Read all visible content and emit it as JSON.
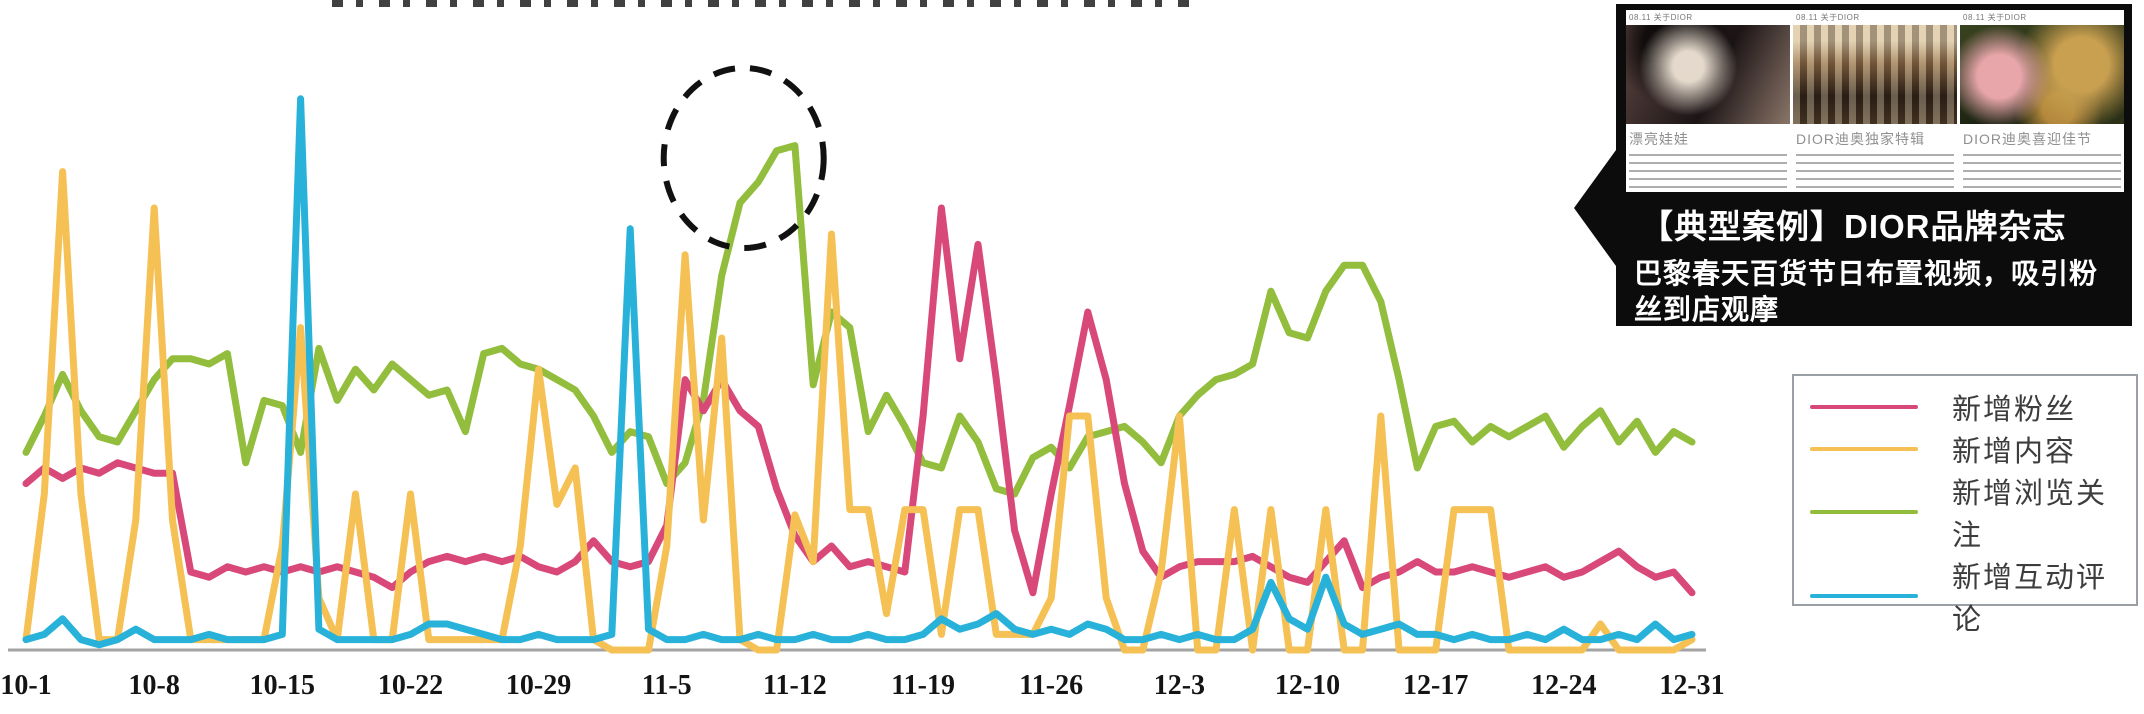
{
  "chart_data": {
    "type": "line",
    "title": "",
    "xlabel": "",
    "ylabel": "",
    "grid": false,
    "legend_position": "right",
    "ylim": [
      0,
      110
    ],
    "x_labels": [
      "10-1",
      "10-8",
      "10-15",
      "10-22",
      "10-29",
      "11-5",
      "11-12",
      "11-19",
      "11-26",
      "12-3",
      "12-10",
      "12-17",
      "12-24",
      "12-31"
    ],
    "x_label_days": [
      0,
      7,
      14,
      21,
      28,
      35,
      42,
      49,
      56,
      63,
      70,
      77,
      84,
      91
    ],
    "date_start": "10-1",
    "date_end": "12-31",
    "annotation": {
      "type": "dashed-circle",
      "day": 39.2,
      "series": "新增浏览关注",
      "meaning": "circled peak of browsing/follow line around 11-8 to 11-12"
    },
    "series": [
      {
        "name": "新增粉丝",
        "key": "new-fans",
        "color": "#d8497a",
        "values": [
          32,
          35,
          33,
          35,
          34,
          36,
          35,
          34,
          34,
          15,
          14,
          16,
          15,
          16,
          15,
          16,
          15,
          16,
          15,
          14,
          12,
          15,
          17,
          18,
          17,
          18,
          17,
          18,
          16,
          15,
          17,
          21,
          17,
          16,
          17,
          24,
          52,
          46,
          52,
          46,
          43,
          31,
          22,
          17,
          20,
          16,
          17,
          16,
          15,
          45,
          85,
          56,
          78,
          52,
          23,
          11,
          30,
          47,
          65,
          52,
          32,
          19,
          14,
          16,
          17,
          17,
          17,
          18,
          16,
          14,
          13,
          17,
          21,
          12,
          14,
          15,
          17,
          15,
          15,
          16,
          15,
          14,
          15,
          16,
          14,
          15,
          17,
          19,
          16,
          14,
          15,
          11
        ]
      },
      {
        "name": "新增内容",
        "key": "new-content",
        "color": "#f5c054",
        "values": [
          2,
          30,
          92,
          30,
          2,
          2,
          25,
          85,
          25,
          2,
          2,
          2,
          2,
          2,
          20,
          62,
          10,
          2,
          30,
          2,
          2,
          30,
          2,
          2,
          2,
          2,
          2,
          20,
          54,
          28,
          35,
          2,
          0,
          0,
          0,
          20,
          76,
          25,
          60,
          2,
          0,
          0,
          26,
          17,
          80,
          27,
          27,
          7,
          27,
          27,
          3,
          27,
          27,
          3,
          3,
          3,
          10,
          45,
          45,
          10,
          0,
          0,
          15,
          45,
          0,
          0,
          27,
          0,
          27,
          0,
          0,
          27,
          0,
          0,
          45,
          0,
          0,
          0,
          27,
          27,
          27,
          0,
          0,
          0,
          0,
          0,
          5,
          0,
          0,
          0,
          0,
          2
        ]
      },
      {
        "name": "新增浏览关注",
        "key": "new-views-follows",
        "color": "#92bd3d",
        "values": [
          38,
          45,
          53,
          46,
          41,
          40,
          46,
          52,
          56,
          56,
          55,
          57,
          36,
          48,
          47,
          38,
          58,
          48,
          54,
          50,
          55,
          52,
          49,
          50,
          42,
          57,
          58,
          55,
          54,
          52,
          50,
          45,
          38,
          42,
          41,
          32,
          36,
          48,
          72,
          86,
          90,
          96,
          97,
          51,
          65,
          62,
          42,
          49,
          43,
          36,
          35,
          45,
          40,
          31,
          30,
          37,
          39,
          35,
          41,
          42,
          43,
          40,
          36,
          45,
          49,
          52,
          53,
          55,
          69,
          61,
          60,
          69,
          74,
          74,
          67,
          52,
          35,
          43,
          44,
          40,
          43,
          41,
          43,
          45,
          39,
          43,
          46,
          40,
          44,
          38,
          42,
          40
        ]
      },
      {
        "name": "新增互动评论",
        "key": "new-interactions-comments",
        "color": "#28b2da",
        "values": [
          2,
          3,
          6,
          2,
          1,
          2,
          4,
          2,
          2,
          2,
          3,
          2,
          2,
          2,
          3,
          106,
          4,
          2,
          2,
          2,
          2,
          3,
          5,
          5,
          4,
          3,
          2,
          2,
          3,
          2,
          2,
          2,
          3,
          81,
          4,
          2,
          2,
          3,
          2,
          2,
          3,
          2,
          2,
          3,
          2,
          2,
          3,
          2,
          2,
          3,
          6,
          4,
          5,
          7,
          4,
          3,
          4,
          3,
          5,
          4,
          2,
          2,
          3,
          2,
          3,
          2,
          2,
          4,
          13,
          6,
          4,
          14,
          5,
          3,
          4,
          5,
          3,
          3,
          2,
          3,
          2,
          2,
          3,
          2,
          4,
          2,
          2,
          3,
          2,
          5,
          2,
          3
        ]
      }
    ]
  },
  "inset": {
    "cards": [
      {
        "header": "08.11 关于DIOR",
        "title": "漂亮娃娃"
      },
      {
        "header": "08.11 关于DIOR",
        "title": "DIOR迪奥独家特辑"
      },
      {
        "header": "08.11 关于DIOR",
        "title": "DIOR迪奥喜迎佳节"
      }
    ],
    "banner_title": "【典型案例】DIOR品牌杂志",
    "banner_body": "巴黎春天百货节日布置视频，吸引粉丝到店观摩"
  }
}
